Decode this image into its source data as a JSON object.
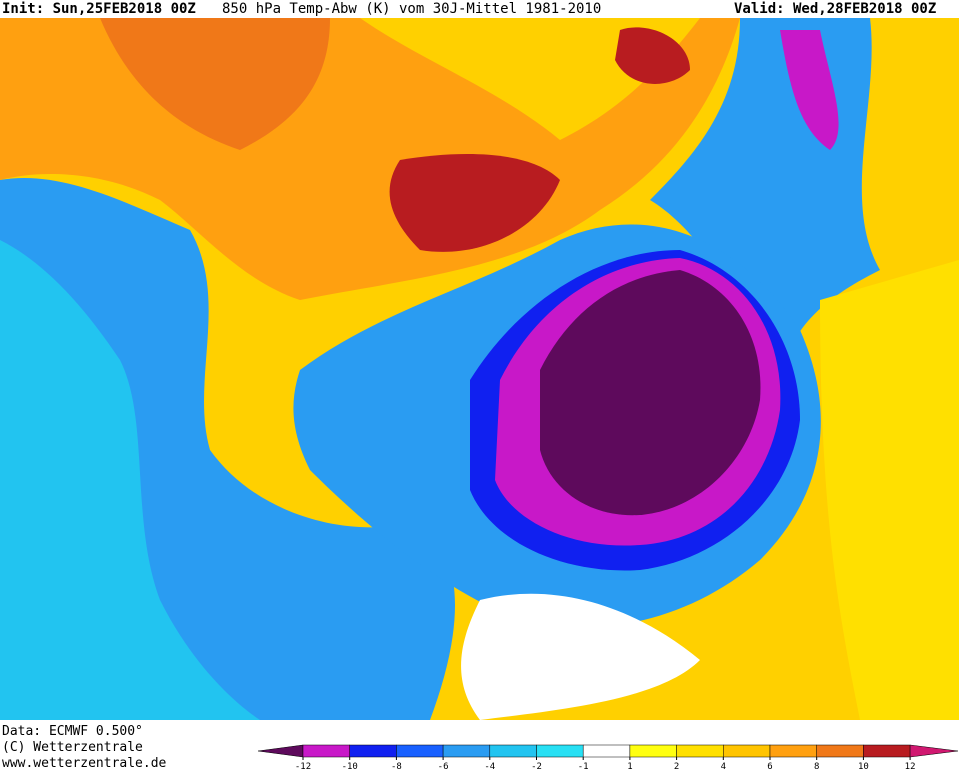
{
  "header": {
    "init": "Init: Sun,25FEB2018 00Z",
    "title": "850 hPa Temp-Abw (K) vom 30J-Mittel 1981-2010",
    "valid": "Valid: Wed,28FEB2018 00Z"
  },
  "footer": {
    "data": "Data: ECMWF  0.500°",
    "copyright": "(C) Wetterzentrale",
    "url": "www.wetterzentrale.de"
  },
  "legend": {
    "ticks": [
      -12,
      -10,
      -8,
      -6,
      -4,
      -2,
      -1,
      1,
      2,
      4,
      6,
      8,
      10,
      12
    ],
    "colors": [
      "#5e0a5c",
      "#c818c8",
      "#1020f0",
      "#1860ff",
      "#2a9cf2",
      "#22c4f0",
      "#28e0f4",
      "#ffffff",
      "#ffff10",
      "#ffe000",
      "#ffc400",
      "#ffa010",
      "#f07818",
      "#b81c20",
      "#d01870"
    ]
  }
}
